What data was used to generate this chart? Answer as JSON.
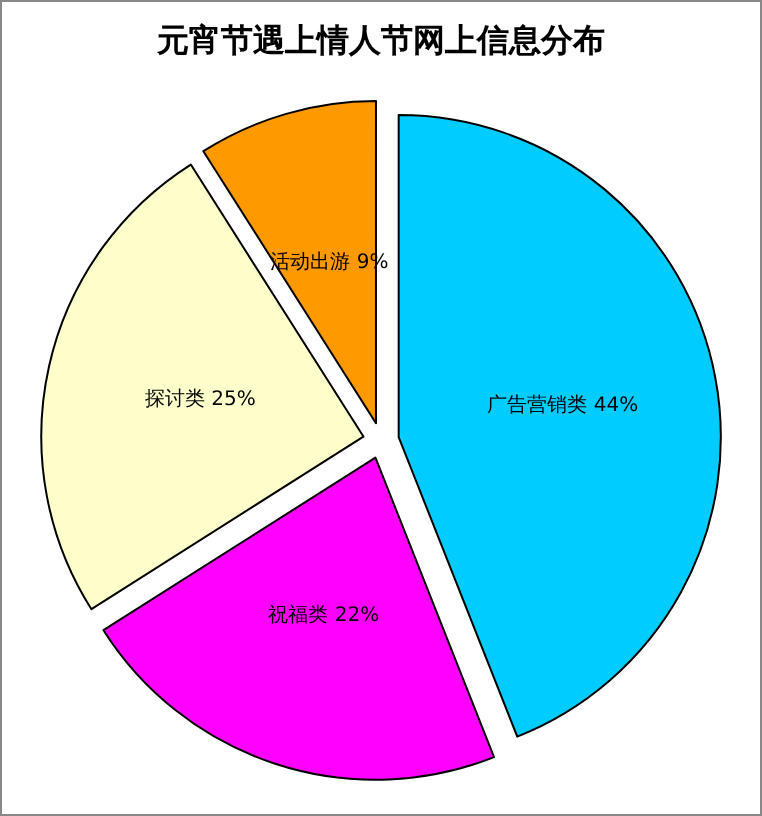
{
  "chart_data": {
    "type": "pie",
    "title": "元宵节遇上情人节网上信息分布",
    "categories": [
      "广告营销类",
      "祝福类",
      "探讨类",
      "活动出游"
    ],
    "values": [
      44,
      22,
      25,
      9
    ],
    "colors": [
      "#00ccff",
      "#ff00ff",
      "#ffffcc",
      "#ff9900"
    ],
    "value_labels": [
      "44%",
      "22%",
      "25%",
      "9%"
    ]
  }
}
